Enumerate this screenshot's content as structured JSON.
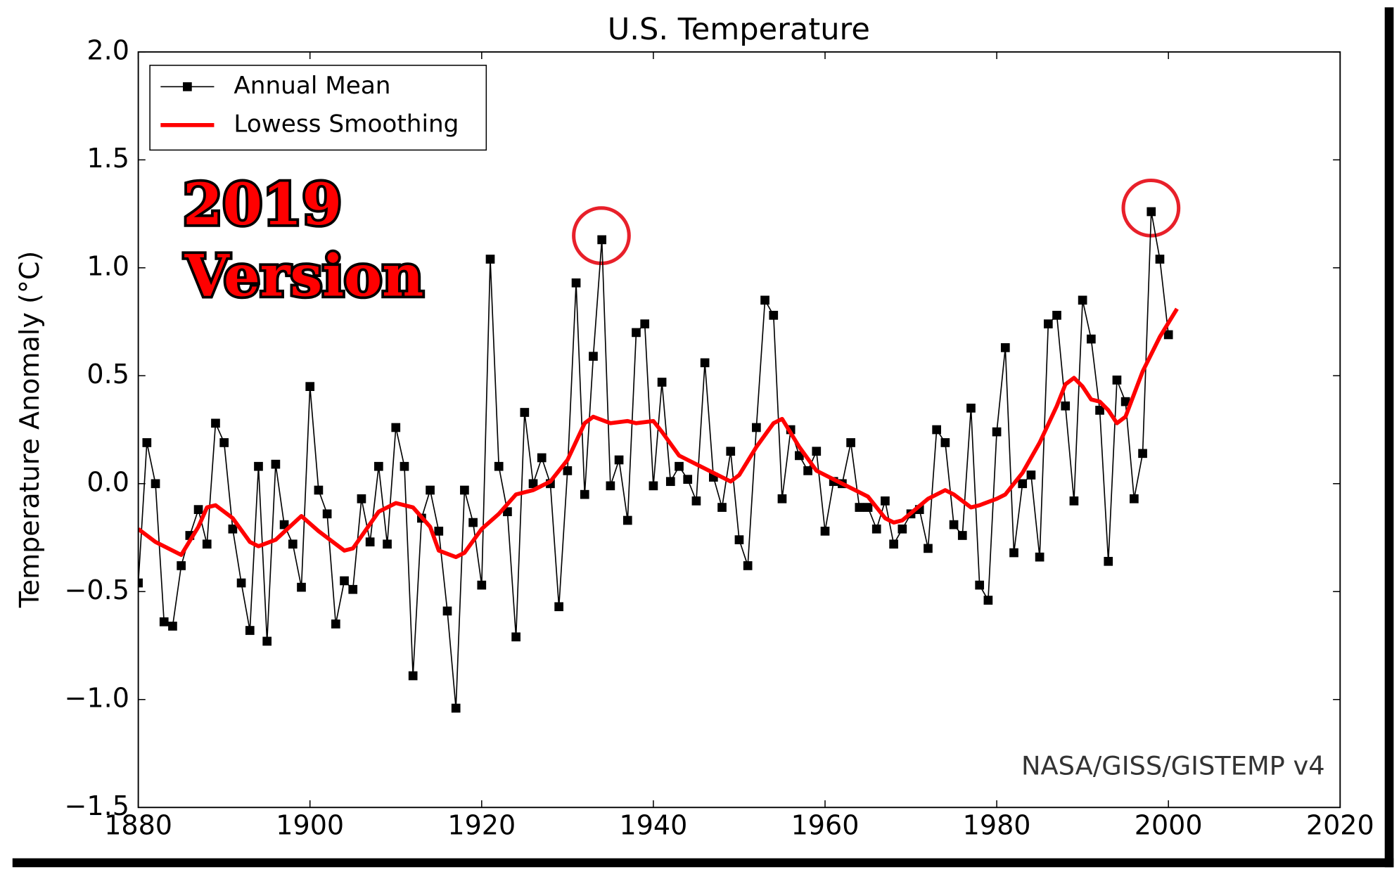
{
  "chart_data": {
    "type": "line",
    "title": "U.S. Temperature",
    "ylabel": "Temperature Anomaly (°C)",
    "annotation": [
      "2019",
      "Version"
    ],
    "source": "NASA/GISS/GISTEMP v4",
    "xlim": [
      1880,
      2020
    ],
    "xticks": [
      1880,
      1900,
      1920,
      1940,
      1960,
      1980,
      2000,
      2020
    ],
    "ylim": [
      -1.5,
      2.0
    ],
    "yticks": [
      {
        "value": -1.5,
        "label": "−1.5"
      },
      {
        "value": -1.0,
        "label": "−1.0"
      },
      {
        "value": -0.5,
        "label": "−0.5"
      },
      {
        "value": 0,
        "label": "0.0"
      },
      0.5,
      {
        "value": 1.0,
        "label": "1.0"
      },
      1.5,
      {
        "value": 2.0,
        "label": "2.0"
      }
    ],
    "legend": "upper left",
    "series": [
      {
        "name": "Annual Mean",
        "color": "#000000",
        "marker": "square",
        "x": [
          1880,
          1881,
          1882,
          1883,
          1884,
          1885,
          1886,
          1887,
          1888,
          1889,
          1890,
          1891,
          1892,
          1893,
          1894,
          1895,
          1896,
          1897,
          1898,
          1899,
          1900,
          1901,
          1902,
          1903,
          1904,
          1905,
          1906,
          1907,
          1908,
          1909,
          1910,
          1911,
          1912,
          1913,
          1914,
          1915,
          1916,
          1917,
          1918,
          1919,
          1920,
          1921,
          1922,
          1923,
          1924,
          1925,
          1926,
          1927,
          1928,
          1929,
          1930,
          1931,
          1932,
          1933,
          1934,
          1935,
          1936,
          1937,
          1938,
          1939,
          1940,
          1941,
          1942,
          1943,
          1944,
          1945,
          1946,
          1947,
          1948,
          1949,
          1950,
          1951,
          1952,
          1953,
          1954,
          1955,
          1956,
          1957,
          1958,
          1959,
          1960,
          1961,
          1962,
          1963,
          1964,
          1965,
          1966,
          1967,
          1968,
          1969,
          1970,
          1971,
          1972,
          1973,
          1974,
          1975,
          1976,
          1977,
          1978,
          1979,
          1980,
          1981,
          1982,
          1983,
          1984,
          1985,
          1986,
          1987,
          1988,
          1989,
          1990,
          1991,
          1992,
          1993,
          1994,
          1995,
          1996,
          1997,
          1998,
          1999,
          2000
        ],
        "values": [
          -0.46,
          0.19,
          0.0,
          -0.64,
          -0.66,
          -0.38,
          -0.24,
          -0.12,
          -0.28,
          0.28,
          0.19,
          -0.21,
          -0.46,
          -0.68,
          0.08,
          -0.73,
          0.09,
          -0.19,
          -0.28,
          -0.48,
          0.45,
          -0.03,
          -0.14,
          -0.65,
          -0.45,
          -0.49,
          -0.07,
          -0.27,
          0.08,
          -0.28,
          0.26,
          0.08,
          -0.89,
          -0.16,
          -0.03,
          -0.22,
          -0.59,
          -1.04,
          -0.03,
          -0.18,
          -0.47,
          1.04,
          0.08,
          -0.13,
          -0.71,
          0.33,
          0.0,
          0.12,
          0.0,
          -0.57,
          0.06,
          0.93,
          -0.05,
          0.59,
          1.13,
          -0.01,
          0.11,
          -0.17,
          0.7,
          0.74,
          -0.01,
          0.47,
          0.01,
          0.08,
          0.02,
          -0.08,
          0.56,
          0.03,
          -0.11,
          0.15,
          -0.26,
          -0.38,
          0.26,
          0.85,
          0.78,
          -0.07,
          0.25,
          0.13,
          0.06,
          0.15,
          -0.22,
          0.01,
          0.0,
          0.19,
          -0.11,
          -0.11,
          -0.21,
          -0.08,
          -0.28,
          -0.21,
          -0.14,
          -0.12,
          -0.3,
          0.25,
          0.19,
          -0.19,
          -0.24,
          0.35,
          -0.47,
          -0.54,
          0.24,
          0.63,
          -0.32,
          0.0,
          0.04,
          -0.34,
          0.74,
          0.78,
          0.36,
          -0.08,
          0.85,
          0.67,
          0.34,
          -0.36,
          0.48,
          0.38,
          -0.07,
          0.14,
          1.26,
          1.04,
          0.69
        ]
      },
      {
        "name": "Lowess Smoothing",
        "color": "#ff0000",
        "x": [
          1880,
          1882,
          1885,
          1887,
          1888,
          1889,
          1891,
          1893,
          1894,
          1896,
          1899,
          1901,
          1904,
          1905,
          1908,
          1910,
          1912,
          1914,
          1915,
          1917,
          1918,
          1920,
          1922,
          1924,
          1926,
          1928,
          1930,
          1932,
          1933,
          1935,
          1937,
          1938,
          1940,
          1941,
          1943,
          1945,
          1947,
          1949,
          1950,
          1952,
          1954,
          1955,
          1957,
          1959,
          1961,
          1963,
          1965,
          1967,
          1968,
          1969,
          1972,
          1974,
          1975,
          1977,
          1978,
          1980,
          1981,
          1983,
          1985,
          1987,
          1988,
          1989,
          1990,
          1991,
          1992,
          1993,
          1994,
          1995,
          1997,
          1999,
          2001
        ],
        "values": [
          -0.21,
          -0.27,
          -0.33,
          -0.2,
          -0.11,
          -0.1,
          -0.16,
          -0.27,
          -0.29,
          -0.26,
          -0.15,
          -0.22,
          -0.31,
          -0.3,
          -0.13,
          -0.09,
          -0.11,
          -0.2,
          -0.31,
          -0.34,
          -0.32,
          -0.21,
          -0.14,
          -0.05,
          -0.03,
          0.01,
          0.11,
          0.28,
          0.31,
          0.28,
          0.29,
          0.28,
          0.29,
          0.24,
          0.13,
          0.09,
          0.05,
          0.01,
          0.04,
          0.17,
          0.28,
          0.3,
          0.17,
          0.06,
          0.02,
          -0.02,
          -0.06,
          -0.16,
          -0.18,
          -0.17,
          -0.07,
          -0.03,
          -0.05,
          -0.11,
          -0.1,
          -0.07,
          -0.05,
          0.05,
          0.19,
          0.36,
          0.46,
          0.49,
          0.45,
          0.39,
          0.38,
          0.34,
          0.28,
          0.31,
          0.52,
          0.68,
          0.81
        ]
      }
    ]
  }
}
